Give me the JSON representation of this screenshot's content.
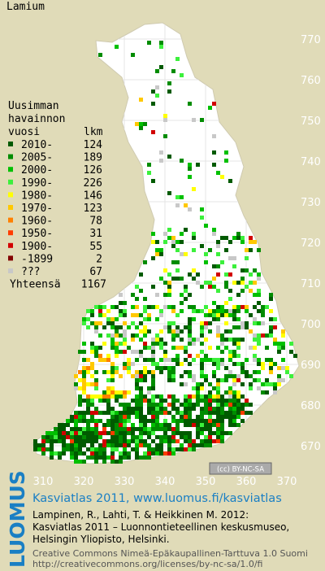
{
  "title": "Lamium",
  "legend": {
    "heading": [
      "Uusimman",
      "havainnon",
      "vuosi"
    ],
    "count_heading": "lkm",
    "items": [
      {
        "label": "2010-",
        "count": 124,
        "color": "#005a00"
      },
      {
        "label": "2005-",
        "count": 189,
        "color": "#008c00"
      },
      {
        "label": "2000-",
        "count": 126,
        "color": "#00c000"
      },
      {
        "label": "1990-",
        "count": 226,
        "color": "#3cf03c"
      },
      {
        "label": "1980-",
        "count": 146,
        "color": "#ffff00"
      },
      {
        "label": "1970-",
        "count": 123,
        "color": "#ffc800"
      },
      {
        "label": "1960-",
        "count": 78,
        "color": "#ff8000"
      },
      {
        "label": "1950-",
        "count": 31,
        "color": "#ff3c00"
      },
      {
        "label": "1900-",
        "count": 55,
        "color": "#d20000"
      },
      {
        "label": "-1899",
        "count": 2,
        "color": "#820000"
      },
      {
        "label": "???",
        "count": 67,
        "color": "#c8c8c8"
      }
    ],
    "total_label": "Yhteensä",
    "total": 1167
  },
  "map": {
    "northing_labels": [
      770,
      760,
      750,
      740,
      730,
      720,
      710,
      700,
      690,
      680,
      670
    ],
    "easting_labels": [
      310,
      320,
      330,
      340,
      350,
      360,
      370
    ],
    "license_badge": "(cc) BY-NC-SA"
  },
  "footer": {
    "logo": "LUOMUS",
    "link": "Kasviatlas 2011, www.luomus.fi/kasviatlas",
    "citation": [
      "Lampinen, R., Lahti, T. & Heikkinen M. 2012:",
      "Kasviatlas 2011 – Luonnontieteellinen keskusmuseo,",
      "Helsingin Yliopisto, Helsinki."
    ],
    "license": [
      "Creative Commons Nimeä-Epäkaupallinen-Tarttuva 1.0 Suomi",
      "http://creativecommons.org/licenses/by-nc-sa/1.0/fi"
    ]
  }
}
